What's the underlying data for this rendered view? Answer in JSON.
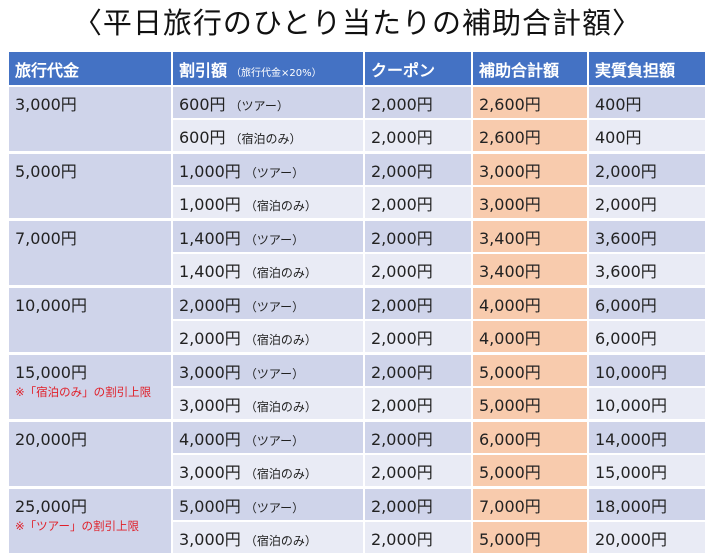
{
  "title": "〈平日旅行のひとり当たりの補助合計額〉",
  "headers": {
    "price": "旅行代金",
    "discount": "割引額",
    "discount_note": "（旅行代金×20%）",
    "coupon": "クーポン",
    "total": "補助合計額",
    "burden": "実質負担額"
  },
  "groups": [
    {
      "price": "3,000円",
      "note": "",
      "rows": [
        {
          "discount": "600円",
          "type": "（ツアー）",
          "coupon": "2,000円",
          "total": "2,600円",
          "burden": "400円"
        },
        {
          "discount": "600円",
          "type": "（宿泊のみ）",
          "coupon": "2,000円",
          "total": "2,600円",
          "burden": "400円"
        }
      ]
    },
    {
      "price": "5,000円",
      "note": "",
      "rows": [
        {
          "discount": "1,000円",
          "type": "（ツアー）",
          "coupon": "2,000円",
          "total": "3,000円",
          "burden": "2,000円"
        },
        {
          "discount": "1,000円",
          "type": "（宿泊のみ）",
          "coupon": "2,000円",
          "total": "3,000円",
          "burden": "2,000円"
        }
      ]
    },
    {
      "price": "7,000円",
      "note": "",
      "rows": [
        {
          "discount": "1,400円",
          "type": "（ツアー）",
          "coupon": "2,000円",
          "total": "3,400円",
          "burden": "3,600円"
        },
        {
          "discount": "1,400円",
          "type": "（宿泊のみ）",
          "coupon": "2,000円",
          "total": "3,400円",
          "burden": "3,600円"
        }
      ]
    },
    {
      "price": "10,000円",
      "note": "",
      "rows": [
        {
          "discount": "2,000円",
          "type": "（ツアー）",
          "coupon": "2,000円",
          "total": "4,000円",
          "burden": "6,000円"
        },
        {
          "discount": "2,000円",
          "type": "（宿泊のみ）",
          "coupon": "2,000円",
          "total": "4,000円",
          "burden": "6,000円"
        }
      ]
    },
    {
      "price": "15,000円",
      "note": "※「宿泊のみ」の割引上限",
      "rows": [
        {
          "discount": "3,000円",
          "type": "（ツアー）",
          "coupon": "2,000円",
          "total": "5,000円",
          "burden": "10,000円"
        },
        {
          "discount": "3,000円",
          "type": "（宿泊のみ）",
          "coupon": "2,000円",
          "total": "5,000円",
          "burden": "10,000円"
        }
      ]
    },
    {
      "price": "20,000円",
      "note": "",
      "rows": [
        {
          "discount": "4,000円",
          "type": "（ツアー）",
          "coupon": "2,000円",
          "total": "6,000円",
          "burden": "14,000円"
        },
        {
          "discount": "3,000円",
          "type": "（宿泊のみ）",
          "coupon": "2,000円",
          "total": "5,000円",
          "burden": "15,000円"
        }
      ]
    },
    {
      "price": "25,000円",
      "note": "※「ツアー」の割引上限",
      "rows": [
        {
          "discount": "5,000円",
          "type": "（ツアー）",
          "coupon": "2,000円",
          "total": "7,000円",
          "burden": "18,000円"
        },
        {
          "discount": "3,000円",
          "type": "（宿泊のみ）",
          "coupon": "2,000円",
          "total": "5,000円",
          "burden": "20,000円"
        }
      ]
    }
  ],
  "colors": {
    "header": "#4472c4",
    "total_highlight": "#f8cbad",
    "note": "#e0202a"
  }
}
